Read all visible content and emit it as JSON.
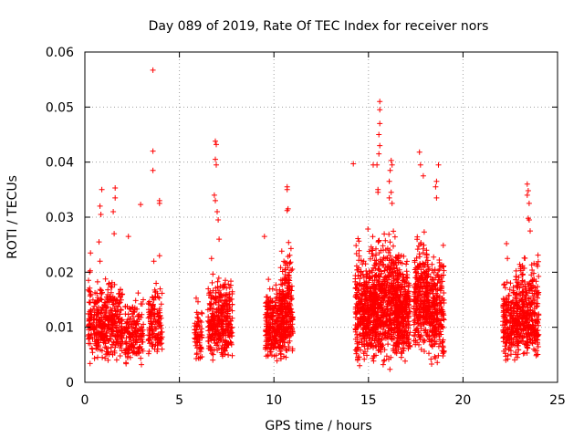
{
  "chart_data": {
    "type": "scatter",
    "title": "Day 089 of 2019, Rate Of TEC Index for receiver nors",
    "xlabel": "GPS time / hours",
    "ylabel": "ROTI / TECUs",
    "xlim": [
      0,
      25
    ],
    "ylim": [
      0,
      0.06
    ],
    "xticks": [
      0,
      5,
      10,
      15,
      20,
      25
    ],
    "yticks": [
      0,
      0.01,
      0.02,
      0.03,
      0.04,
      0.05,
      0.06
    ],
    "xtick_labels": [
      "0",
      "5",
      "10",
      "15",
      "20",
      "25"
    ],
    "ytick_labels": [
      "0",
      "0.01",
      "0.02",
      "0.03",
      "0.04",
      "0.05",
      "0.06"
    ],
    "grid": true,
    "marker": "+",
    "color": "#ff0000",
    "series": [
      {
        "name": "ROTI",
        "points": [
          [
            3.6,
            0.0567
          ],
          [
            3.6,
            0.042
          ],
          [
            3.6,
            0.0385
          ],
          [
            3.95,
            0.033
          ],
          [
            3.95,
            0.0325
          ],
          [
            3.95,
            0.023
          ],
          [
            3.65,
            0.022
          ],
          [
            2.95,
            0.0323
          ],
          [
            2.3,
            0.0265
          ],
          [
            1.6,
            0.0353
          ],
          [
            1.6,
            0.0335
          ],
          [
            1.5,
            0.031
          ],
          [
            1.55,
            0.027
          ],
          [
            0.9,
            0.035
          ],
          [
            0.8,
            0.032
          ],
          [
            0.85,
            0.0305
          ],
          [
            0.75,
            0.0255
          ],
          [
            0.8,
            0.022
          ],
          [
            0.3,
            0.0235
          ],
          [
            0.25,
            0.02
          ],
          [
            6.9,
            0.0438
          ],
          [
            6.95,
            0.0432
          ],
          [
            6.9,
            0.0405
          ],
          [
            6.95,
            0.0395
          ],
          [
            6.85,
            0.034
          ],
          [
            6.9,
            0.033
          ],
          [
            7.0,
            0.031
          ],
          [
            7.05,
            0.0295
          ],
          [
            7.1,
            0.026
          ],
          [
            6.7,
            0.0225
          ],
          [
            9.5,
            0.0265
          ],
          [
            10.7,
            0.0355
          ],
          [
            10.7,
            0.035
          ],
          [
            10.75,
            0.0315
          ],
          [
            10.7,
            0.0312
          ],
          [
            14.2,
            0.0397
          ],
          [
            15.6,
            0.051
          ],
          [
            15.6,
            0.0495
          ],
          [
            15.6,
            0.047
          ],
          [
            15.55,
            0.045
          ],
          [
            15.6,
            0.043
          ],
          [
            15.55,
            0.0415
          ],
          [
            15.5,
            0.035
          ],
          [
            15.5,
            0.0345
          ],
          [
            15.45,
            0.0395
          ],
          [
            16.2,
            0.0403
          ],
          [
            16.25,
            0.0395
          ],
          [
            16.15,
            0.0385
          ],
          [
            16.1,
            0.0365
          ],
          [
            16.1,
            0.0335
          ],
          [
            16.2,
            0.0345
          ],
          [
            16.25,
            0.0325
          ],
          [
            15.25,
            0.0395
          ],
          [
            17.7,
            0.0418
          ],
          [
            17.75,
            0.0395
          ],
          [
            17.9,
            0.0375
          ],
          [
            18.7,
            0.0395
          ],
          [
            18.6,
            0.0365
          ],
          [
            18.55,
            0.0355
          ],
          [
            18.6,
            0.0335
          ],
          [
            23.4,
            0.036
          ],
          [
            23.45,
            0.0348
          ],
          [
            23.4,
            0.034
          ],
          [
            23.5,
            0.0325
          ],
          [
            23.45,
            0.0298
          ],
          [
            23.5,
            0.0295
          ],
          [
            23.55,
            0.0275
          ],
          [
            22.3,
            0.0252
          ],
          [
            22.35,
            0.0225
          ]
        ]
      }
    ],
    "clusters": [
      {
        "x_range": [
          0.15,
          2.0
        ],
        "y_range": [
          0.003,
          0.021
        ],
        "count": 430,
        "seed": 11
      },
      {
        "x_range": [
          2.1,
          3.1
        ],
        "y_range": [
          0.002,
          0.018
        ],
        "count": 170,
        "seed": 23
      },
      {
        "x_range": [
          3.35,
          4.1
        ],
        "y_range": [
          0.004,
          0.019
        ],
        "count": 140,
        "seed": 37
      },
      {
        "x_range": [
          5.8,
          6.2
        ],
        "y_range": [
          0.003,
          0.016
        ],
        "count": 70,
        "seed": 41
      },
      {
        "x_range": [
          6.5,
          7.8
        ],
        "y_range": [
          0.003,
          0.022
        ],
        "count": 340,
        "seed": 53
      },
      {
        "x_range": [
          9.55,
          10.5
        ],
        "y_range": [
          0.003,
          0.02
        ],
        "count": 280,
        "seed": 67
      },
      {
        "x_range": [
          10.3,
          11.0
        ],
        "y_range": [
          0.003,
          0.027
        ],
        "count": 230,
        "seed": 71
      },
      {
        "x_range": [
          14.3,
          15.4
        ],
        "y_range": [
          0.002,
          0.029
        ],
        "count": 420,
        "seed": 83
      },
      {
        "x_range": [
          15.3,
          16.6
        ],
        "y_range": [
          0.002,
          0.03
        ],
        "count": 520,
        "seed": 97
      },
      {
        "x_range": [
          16.5,
          17.2
        ],
        "y_range": [
          0.003,
          0.026
        ],
        "count": 260,
        "seed": 101
      },
      {
        "x_range": [
          17.4,
          18.2
        ],
        "y_range": [
          0.004,
          0.03
        ],
        "count": 300,
        "seed": 113
      },
      {
        "x_range": [
          18.2,
          19.0
        ],
        "y_range": [
          0.002,
          0.027
        ],
        "count": 240,
        "seed": 127
      },
      {
        "x_range": [
          22.1,
          22.9
        ],
        "y_range": [
          0.003,
          0.021
        ],
        "count": 200,
        "seed": 131
      },
      {
        "x_range": [
          22.8,
          24.0
        ],
        "y_range": [
          0.003,
          0.025
        ],
        "count": 360,
        "seed": 139
      }
    ]
  }
}
